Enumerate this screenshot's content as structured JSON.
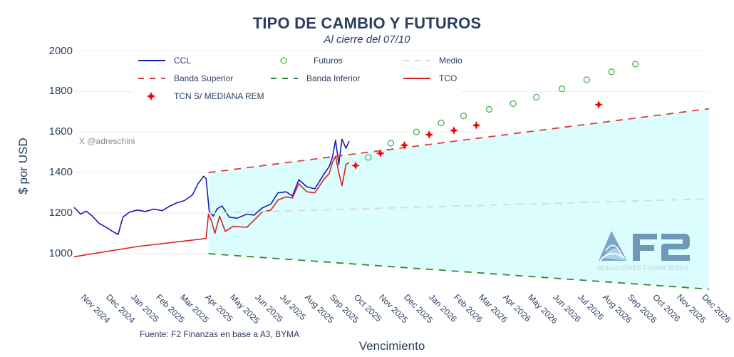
{
  "header": {
    "title": "TIPO DE CAMBIO Y FUTUROS",
    "subtitle": "Al cierre del 07/10"
  },
  "watermark": "X @adreschini",
  "source": "Fuente: F2 Finanzas en base a A3, BYMA",
  "logo": {
    "text": "F2",
    "tagline": "SOLUCIONES FINANCIERAS",
    "color": "#6e9ab8"
  },
  "legend": {
    "items": [
      {
        "label": "CCL",
        "style": "solid-line",
        "color": "#1a1ab8"
      },
      {
        "label": "Futuros",
        "style": "open-circle",
        "color": "#4caf50"
      },
      {
        "label": "Medio",
        "style": "dashed-line",
        "color": "#d8d8d8"
      },
      {
        "label": "Banda Superior",
        "style": "dashed-line",
        "color": "#e03a3a"
      },
      {
        "label": "Banda Inferior",
        "style": "dashed-line",
        "color": "#2e8b2e"
      },
      {
        "label": "TCO",
        "style": "solid-line",
        "color": "#e02020"
      },
      {
        "label": "TCN S/ MEDIANA REM",
        "style": "diamond-marker",
        "color": "#ff0000"
      }
    ]
  },
  "colors": {
    "band_fill": "#dcfdfd",
    "grid": "#eeeeee",
    "text": "#2a3f5f"
  },
  "chart_data": {
    "type": "line",
    "title": "TIPO DE CAMBIO Y FUTUROS",
    "subtitle": "Al cierre del 07/10",
    "xlabel": "Vencimiento",
    "ylabel": "$ por USD",
    "ylim": [
      820,
      2020
    ],
    "yticks": [
      1000,
      1200,
      1400,
      1600,
      1800,
      2000
    ],
    "xticks": [
      "Nov 2024",
      "Dec 2024",
      "Jan 2025",
      "Feb 2025",
      "Mar 2025",
      "Apr 2025",
      "May 2025",
      "Jun 2025",
      "Jul 2025",
      "Aug 2025",
      "Sep 2025",
      "Oct 2025",
      "Nov 2025",
      "Dec 2025",
      "Jan 2026",
      "Feb 2026",
      "Mar 2026",
      "Apr 2026",
      "May 2026",
      "Jun 2026",
      "Jul 2026",
      "Aug 2026",
      "Sep 2026",
      "Oct 2026",
      "Nov 2026",
      "Dec 2026"
    ],
    "grid": true,
    "legend_position": "top-left inside",
    "series": [
      {
        "name": "CCL",
        "type": "line",
        "color": "#1a1ab8",
        "x": [
          "2024-10-28",
          "2024-11-05",
          "2024-11-12",
          "2024-11-20",
          "2024-11-28",
          "2024-12-05",
          "2024-12-15",
          "2024-12-22",
          "2024-12-28",
          "2025-01-05",
          "2025-01-15",
          "2025-01-25",
          "2025-02-05",
          "2025-02-15",
          "2025-02-25",
          "2025-03-05",
          "2025-03-15",
          "2025-03-25",
          "2025-04-01",
          "2025-04-08",
          "2025-04-11",
          "2025-04-15",
          "2025-04-20",
          "2025-04-25",
          "2025-05-01",
          "2025-05-10",
          "2025-05-20",
          "2025-06-01",
          "2025-06-10",
          "2025-06-20",
          "2025-07-01",
          "2025-07-10",
          "2025-07-20",
          "2025-07-28",
          "2025-08-05",
          "2025-08-15",
          "2025-08-25",
          "2025-09-05",
          "2025-09-12",
          "2025-09-16",
          "2025-09-20",
          "2025-09-24",
          "2025-09-28",
          "2025-10-03",
          "2025-10-07"
        ],
        "values": [
          1228,
          1195,
          1210,
          1185,
          1150,
          1135,
          1110,
          1095,
          1180,
          1205,
          1215,
          1208,
          1220,
          1212,
          1235,
          1250,
          1262,
          1290,
          1345,
          1382,
          1370,
          1210,
          1185,
          1222,
          1235,
          1180,
          1175,
          1195,
          1190,
          1225,
          1245,
          1300,
          1305,
          1285,
          1365,
          1330,
          1320,
          1390,
          1430,
          1475,
          1560,
          1440,
          1565,
          1520,
          1555
        ]
      },
      {
        "name": "TCO",
        "type": "line",
        "color": "#e02020",
        "x": [
          "2024-10-28",
          "2025-01-15",
          "2025-04-11",
          "2025-04-14",
          "2025-04-18",
          "2025-04-22",
          "2025-04-28",
          "2025-05-05",
          "2025-05-15",
          "2025-06-01",
          "2025-06-10",
          "2025-06-20",
          "2025-07-01",
          "2025-07-10",
          "2025-07-20",
          "2025-07-28",
          "2025-08-05",
          "2025-08-15",
          "2025-08-25",
          "2025-09-05",
          "2025-09-12",
          "2025-09-16",
          "2025-09-20",
          "2025-09-24",
          "2025-09-28",
          "2025-10-03",
          "2025-10-07"
        ],
        "values": [
          985,
          1035,
          1075,
          1195,
          1160,
          1100,
          1185,
          1110,
          1135,
          1130,
          1165,
          1205,
          1215,
          1265,
          1280,
          1275,
          1345,
          1305,
          1300,
          1365,
          1395,
          1450,
          1480,
          1400,
          1335,
          1440,
          1450
        ]
      },
      {
        "name": "Banda Superior",
        "type": "line-dashed",
        "color": "#e03a3a",
        "x": [
          "2025-04-14",
          "2026-12-31"
        ],
        "values": [
          1400,
          1715
        ]
      },
      {
        "name": "Medio",
        "type": "line-dashed",
        "color": "#d8d8d8",
        "x": [
          "2025-04-14",
          "2026-12-31"
        ],
        "values": [
          1200,
          1270
        ]
      },
      {
        "name": "Banda Inferior",
        "type": "line-dashed",
        "color": "#2e8b2e",
        "x": [
          "2025-04-14",
          "2026-12-31"
        ],
        "values": [
          1000,
          825
        ]
      },
      {
        "name": "Futuros",
        "type": "scatter",
        "marker": "open-circle",
        "color": "#4caf50",
        "x": [
          "2025-10-31",
          "2025-11-28",
          "2025-12-30",
          "2026-01-30",
          "2026-02-27",
          "2026-03-31",
          "2026-04-30",
          "2026-05-29",
          "2026-06-30",
          "2026-07-31",
          "2026-08-31",
          "2026-09-30"
        ],
        "values": [
          1475,
          1545,
          1600,
          1645,
          1680,
          1712,
          1740,
          1772,
          1813,
          1858,
          1897,
          1935
        ]
      },
      {
        "name": "TCN S/ MEDIANA REM",
        "type": "scatter",
        "marker": "diamond",
        "color": "#ff0000",
        "x": [
          "2025-10-15",
          "2025-11-15",
          "2025-12-15",
          "2026-01-15",
          "2026-02-15",
          "2026-03-15",
          "2026-08-15"
        ],
        "values": [
          1435,
          1495,
          1535,
          1587,
          1608,
          1633,
          1735
        ]
      }
    ]
  }
}
